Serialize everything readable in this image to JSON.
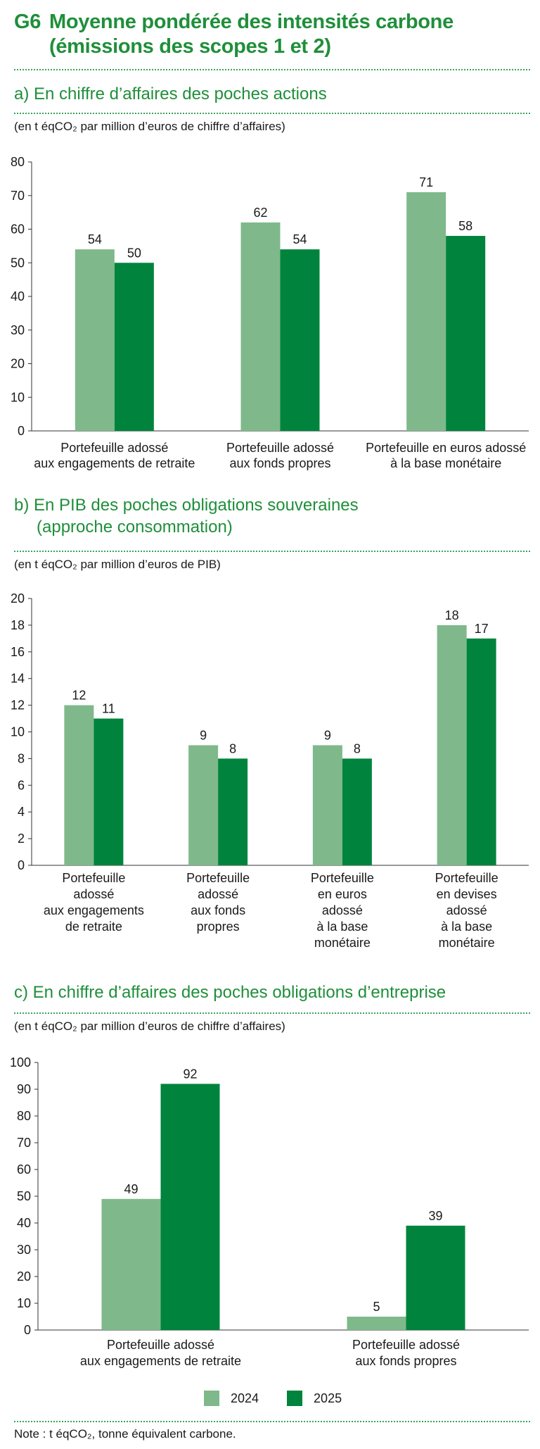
{
  "header": {
    "label": "G6",
    "title_line1": "Moyenne pondérée des intensités carbone",
    "title_line2": "(émissions des scopes 1 et 2)"
  },
  "colors": {
    "series_2024": "#7fb98b",
    "series_2025": "#00843d",
    "accent": "#1f8f3a"
  },
  "sections": [
    {
      "title": "a)  En chiffre d’affaires des poches actions",
      "title_line2": "",
      "unit": "(en t éqCO₂ par million d’euros de chiffre d’affaires)"
    },
    {
      "title": "b)  En PIB des poches obligations souveraines",
      "title_line2": "(approche consommation)",
      "unit": "(en t éqCO₂ par million d’euros de PIB)"
    },
    {
      "title": "c)  En chiffre d’affaires des poches obligations d’entreprise",
      "title_line2": "",
      "unit": "(en t éqCO₂ par million d’euros de chiffre d’affaires)"
    }
  ],
  "chart_data": [
    {
      "type": "bar",
      "categories": [
        [
          "Portefeuille adossé",
          "aux engagements de retraite"
        ],
        [
          "Portefeuille adossé",
          "aux fonds propres"
        ],
        [
          "Portefeuille en euros adossé",
          "à la base monétaire"
        ]
      ],
      "series": [
        {
          "name": "2024",
          "values": [
            54,
            62,
            71
          ]
        },
        {
          "name": "2025",
          "values": [
            50,
            54,
            58
          ]
        }
      ],
      "ylim": [
        0,
        80
      ],
      "yticks": [
        0,
        10,
        20,
        30,
        40,
        50,
        60,
        70,
        80
      ],
      "grid": false
    },
    {
      "type": "bar",
      "categories": [
        [
          "Portefeuille",
          "adossé",
          "aux engagements",
          "de retraite"
        ],
        [
          "Portefeuille",
          "adossé",
          "aux fonds",
          "propres"
        ],
        [
          "Portefeuille",
          "en euros",
          "adossé",
          "à la base",
          "monétaire"
        ],
        [
          "Portefeuille",
          "en devises",
          "adossé",
          "à la base",
          "monétaire"
        ]
      ],
      "series": [
        {
          "name": "2024",
          "values": [
            12,
            9,
            9,
            18
          ]
        },
        {
          "name": "2025",
          "values": [
            11,
            8,
            8,
            17
          ]
        }
      ],
      "ylim": [
        0,
        20
      ],
      "yticks": [
        0,
        2,
        4,
        6,
        8,
        10,
        12,
        14,
        16,
        18,
        20
      ],
      "grid": false
    },
    {
      "type": "bar",
      "categories": [
        [
          "Portefeuille adossé",
          "aux engagements de retraite"
        ],
        [
          "Portefeuille adossé",
          "aux fonds propres"
        ]
      ],
      "series": [
        {
          "name": "2024",
          "values": [
            49,
            5
          ]
        },
        {
          "name": "2025",
          "values": [
            92,
            39
          ]
        }
      ],
      "ylim": [
        0,
        100
      ],
      "yticks": [
        0,
        10,
        20,
        30,
        40,
        50,
        60,
        70,
        80,
        90,
        100
      ],
      "grid": false,
      "legend_position": "bottom"
    }
  ],
  "legend": [
    {
      "label": "2024"
    },
    {
      "label": "2025"
    }
  ],
  "note": "Note : t éqCO₂, tonne équivalent carbone."
}
